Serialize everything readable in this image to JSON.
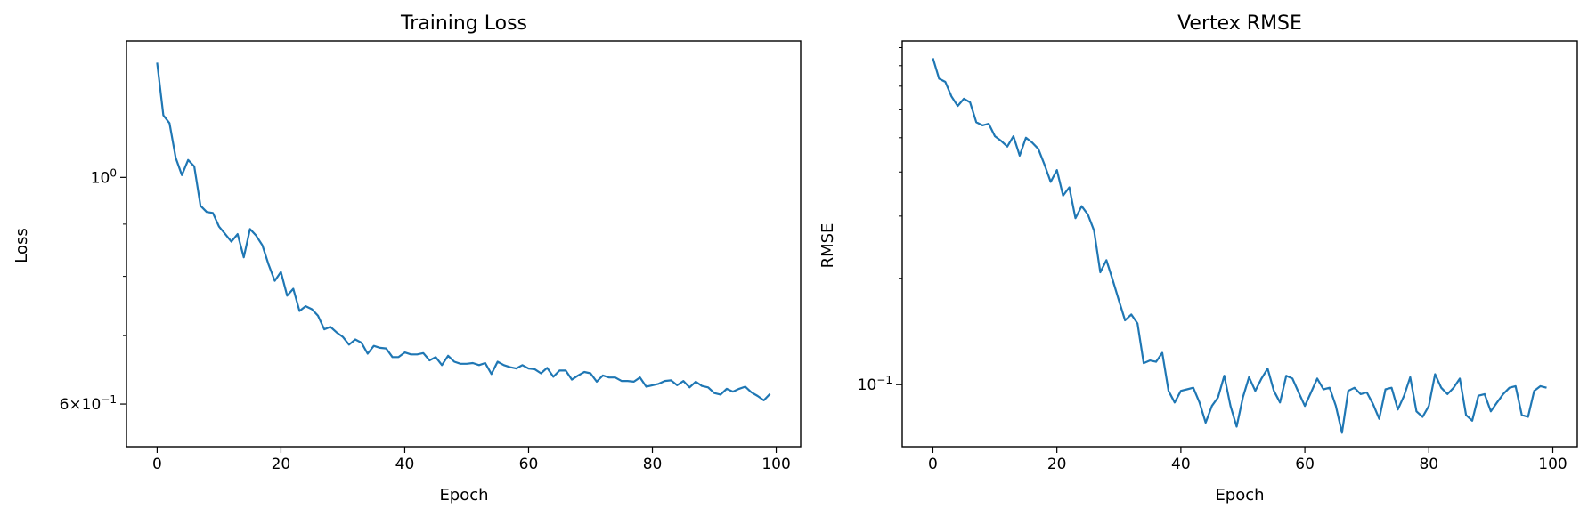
{
  "chart_data": [
    {
      "type": "line",
      "title": "Training Loss",
      "xlabel": "Epoch",
      "ylabel": "Loss",
      "yscale": "log",
      "xlim": [
        -4.95,
        103.95
      ],
      "ylim": [
        0.545,
        1.36
      ],
      "xticks": [
        0,
        20,
        40,
        60,
        80,
        100
      ],
      "xtick_labels": [
        "0",
        "20",
        "40",
        "60",
        "80",
        "100"
      ],
      "yticks_major": [
        1.0,
        0.6
      ],
      "ytick_labels": [
        "10^{0}",
        "6×10^{−1}"
      ],
      "yticks_minor": [
        0.7,
        0.8,
        0.9
      ],
      "color": "#1f77b4",
      "series": [
        {
          "name": "Training Loss",
          "x": [
            0,
            1,
            2,
            3,
            4,
            5,
            6,
            7,
            8,
            9,
            10,
            11,
            12,
            13,
            14,
            15,
            16,
            17,
            18,
            19,
            20,
            21,
            22,
            23,
            24,
            25,
            26,
            27,
            28,
            29,
            30,
            31,
            32,
            33,
            34,
            35,
            36,
            37,
            38,
            39,
            40,
            41,
            42,
            43,
            44,
            45,
            46,
            47,
            48,
            49,
            50,
            51,
            52,
            53,
            54,
            55,
            56,
            57,
            58,
            59,
            60,
            61,
            62,
            63,
            64,
            65,
            66,
            67,
            68,
            69,
            70,
            71,
            72,
            73,
            74,
            75,
            76,
            77,
            78,
            79,
            80,
            81,
            82,
            83,
            84,
            85,
            86,
            87,
            88,
            89,
            90,
            91,
            92,
            93,
            94,
            95,
            96,
            97,
            98,
            99
          ],
          "values": [
            1.295,
            1.15,
            1.13,
            1.045,
            1.005,
            1.04,
            1.025,
            0.938,
            0.925,
            0.923,
            0.895,
            0.88,
            0.865,
            0.88,
            0.835,
            0.89,
            0.877,
            0.858,
            0.822,
            0.792,
            0.808,
            0.766,
            0.778,
            0.74,
            0.748,
            0.743,
            0.732,
            0.71,
            0.714,
            0.705,
            0.698,
            0.686,
            0.694,
            0.689,
            0.672,
            0.684,
            0.681,
            0.68,
            0.667,
            0.667,
            0.674,
            0.671,
            0.671,
            0.673,
            0.662,
            0.667,
            0.655,
            0.669,
            0.66,
            0.657,
            0.657,
            0.658,
            0.655,
            0.658,
            0.642,
            0.66,
            0.655,
            0.652,
            0.65,
            0.655,
            0.65,
            0.649,
            0.643,
            0.651,
            0.638,
            0.647,
            0.647,
            0.634,
            0.64,
            0.645,
            0.643,
            0.631,
            0.64,
            0.637,
            0.637,
            0.632,
            0.632,
            0.631,
            0.637,
            0.624,
            0.626,
            0.628,
            0.632,
            0.633,
            0.626,
            0.632,
            0.623,
            0.631,
            0.625,
            0.623,
            0.615,
            0.613,
            0.621,
            0.617,
            0.621,
            0.624,
            0.616,
            0.611,
            0.605,
            0.614
          ]
        }
      ]
    },
    {
      "type": "line",
      "title": "Vertex RMSE",
      "xlabel": "Epoch",
      "ylabel": "RMSE",
      "yscale": "log",
      "xlim": [
        -4.95,
        103.95
      ],
      "ylim": [
        0.0667,
        0.94
      ],
      "xticks": [
        0,
        20,
        40,
        60,
        80,
        100
      ],
      "xtick_labels": [
        "0",
        "20",
        "40",
        "60",
        "80",
        "100"
      ],
      "yticks_major": [
        0.1
      ],
      "ytick_labels": [
        "10^{−1}"
      ],
      "yticks_minor": [
        0.2,
        0.3,
        0.4,
        0.5,
        0.6,
        0.7,
        0.8,
        0.9
      ],
      "color": "#1f77b4",
      "series": [
        {
          "name": "Vertex RMSE",
          "x": [
            0,
            1,
            2,
            3,
            4,
            5,
            6,
            7,
            8,
            9,
            10,
            11,
            12,
            13,
            14,
            15,
            16,
            17,
            18,
            19,
            20,
            21,
            22,
            23,
            24,
            25,
            26,
            27,
            28,
            29,
            30,
            31,
            32,
            33,
            34,
            35,
            36,
            37,
            38,
            39,
            40,
            41,
            42,
            43,
            44,
            45,
            46,
            47,
            48,
            49,
            50,
            51,
            52,
            53,
            54,
            55,
            56,
            57,
            58,
            59,
            60,
            61,
            62,
            63,
            64,
            65,
            66,
            67,
            68,
            69,
            70,
            71,
            72,
            73,
            74,
            75,
            76,
            77,
            78,
            79,
            80,
            81,
            82,
            83,
            84,
            85,
            86,
            87,
            88,
            89,
            90,
            91,
            92,
            93,
            94,
            95,
            96,
            97,
            98,
            99
          ],
          "values": [
            0.84,
            0.735,
            0.72,
            0.655,
            0.615,
            0.645,
            0.63,
            0.553,
            0.542,
            0.548,
            0.505,
            0.49,
            0.472,
            0.505,
            0.445,
            0.5,
            0.485,
            0.465,
            0.42,
            0.375,
            0.405,
            0.343,
            0.362,
            0.296,
            0.32,
            0.303,
            0.273,
            0.208,
            0.225,
            0.198,
            0.173,
            0.152,
            0.158,
            0.149,
            0.115,
            0.117,
            0.116,
            0.123,
            0.096,
            0.089,
            0.096,
            0.097,
            0.098,
            0.089,
            0.078,
            0.087,
            0.092,
            0.106,
            0.087,
            0.076,
            0.092,
            0.105,
            0.096,
            0.104,
            0.111,
            0.096,
            0.089,
            0.106,
            0.104,
            0.095,
            0.087,
            0.095,
            0.104,
            0.097,
            0.098,
            0.087,
            0.073,
            0.096,
            0.098,
            0.094,
            0.095,
            0.088,
            0.08,
            0.097,
            0.098,
            0.085,
            0.093,
            0.105,
            0.084,
            0.081,
            0.087,
            0.107,
            0.098,
            0.094,
            0.098,
            0.104,
            0.082,
            0.079,
            0.093,
            0.094,
            0.084,
            0.089,
            0.094,
            0.098,
            0.099,
            0.082,
            0.081,
            0.096,
            0.099,
            0.098
          ]
        }
      ]
    }
  ]
}
